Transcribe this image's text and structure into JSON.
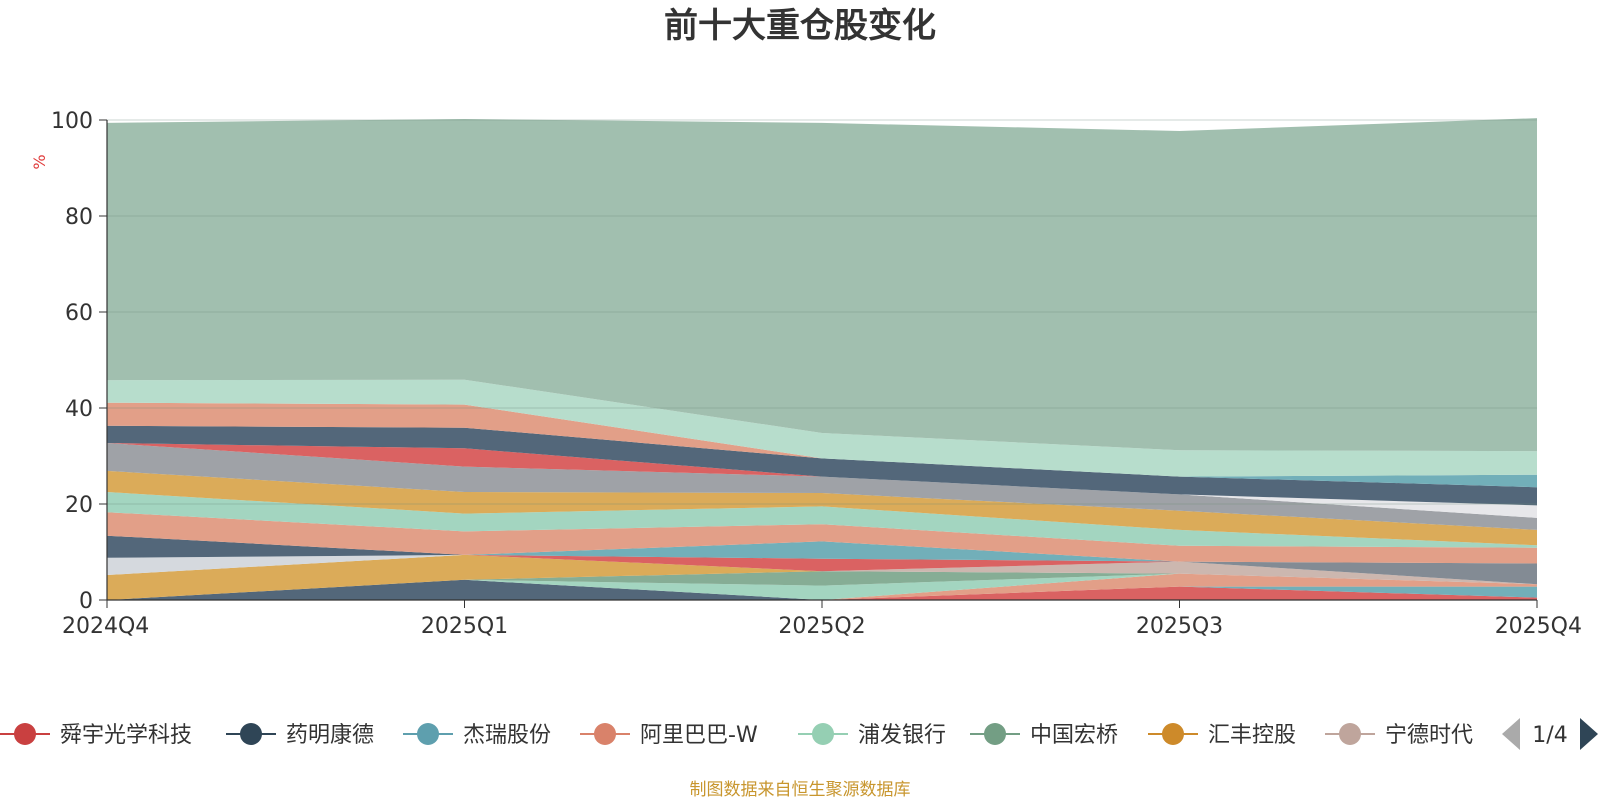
{
  "chart_data": {
    "type": "area",
    "stacked": true,
    "title": "前十大重仓股变化",
    "ylabel": "%",
    "ylim": [
      0,
      100
    ],
    "yticks": [
      "0",
      "20",
      "40",
      "60",
      "80",
      "100"
    ],
    "categories": [
      "2024Q4",
      "2025Q1",
      "2025Q2",
      "2025Q3",
      "2025Q4"
    ],
    "grid": true,
    "series": [
      {
        "name": "舜宇光学科技",
        "color": "#d85a5a",
        "values": [
          0,
          0,
          0,
          2.8,
          0.5
        ]
      },
      {
        "name": "药明康德",
        "color": "#4a5f73",
        "values": [
          0,
          4.2,
          0,
          0,
          0
        ]
      },
      {
        "name": "杰瑞股份",
        "color": "#6aabb5",
        "values": [
          0,
          0,
          0,
          0,
          2.3
        ]
      },
      {
        "name": "阿里巴巴-W",
        "color": "#e09a82",
        "values": [
          0,
          0,
          0,
          2.7,
          0.5
        ]
      },
      {
        "name": "浦发银行",
        "color": "#9ed3bd",
        "values": [
          0,
          0,
          3,
          0,
          0
        ]
      },
      {
        "name": "中国宏桥",
        "color": "#7fa98f",
        "values": [
          0,
          0,
          3,
          0,
          0
        ]
      },
      {
        "name": "汇丰控股",
        "color": "#d9a650",
        "values": [
          5.2,
          5.2,
          0,
          0,
          0
        ]
      },
      {
        "name": "宁德时代",
        "color": "#c9b3ab",
        "values": [
          0,
          0,
          0,
          2.5,
          0
        ]
      },
      {
        "name": "",
        "color": "#7c858e",
        "values": [
          0,
          0,
          0,
          0,
          4.3
        ]
      },
      {
        "name": "",
        "color": "#d3d7dc",
        "values": [
          3.6,
          0,
          0,
          0,
          0
        ]
      },
      {
        "name": "",
        "color": "#d85a5a",
        "values": [
          0,
          0,
          2.6,
          0,
          0
        ]
      },
      {
        "name": "",
        "color": "#6aabb5",
        "values": [
          0,
          0,
          3.6,
          0,
          0
        ]
      },
      {
        "name": "",
        "color": "#4a5f73",
        "values": [
          4.6,
          0,
          0,
          0,
          0
        ]
      },
      {
        "name": "",
        "color": "#e09a82",
        "values": [
          4.9,
          4.9,
          3.6,
          3.3,
          3.3
        ]
      },
      {
        "name": "",
        "color": "#9ed3bd",
        "values": [
          4.2,
          3.7,
          3.7,
          3.3,
          0.5
        ]
      },
      {
        "name": "",
        "color": "#d9a650",
        "values": [
          4.4,
          4.5,
          2.8,
          4,
          3.2
        ]
      },
      {
        "name": "",
        "color": "#9a9da2",
        "values": [
          5.8,
          5.3,
          3.4,
          3.4,
          2.5
        ]
      },
      {
        "name": "",
        "color": "#d85a5a",
        "values": [
          0,
          3.8,
          0,
          0,
          0
        ]
      },
      {
        "name": "",
        "color": "#e6e6e9",
        "values": [
          0,
          0,
          0,
          0,
          2.6
        ]
      },
      {
        "name": "",
        "color": "#4a5f73",
        "values": [
          3.6,
          4.3,
          3.8,
          3.7,
          3.8
        ]
      },
      {
        "name": "",
        "color": "#6aabb5",
        "values": [
          0,
          0,
          0,
          0,
          2.6
        ]
      },
      {
        "name": "",
        "color": "#e09a82",
        "values": [
          4.8,
          4.8,
          0,
          0,
          0
        ]
      },
      {
        "name": "",
        "color": "#b3dbc9",
        "values": [
          4.7,
          5.2,
          5.3,
          5.5,
          4.9
        ]
      },
      {
        "name": "",
        "color": "#9cbcab",
        "values": [
          53.6,
          54.3,
          64.6,
          66.5,
          69.4
        ]
      }
    ],
    "legend": {
      "position": "bottom",
      "page": "1/4",
      "items": [
        {
          "name": "舜宇光学科技",
          "color": "#c94040"
        },
        {
          "name": "药明康德",
          "color": "#2f4556"
        },
        {
          "name": "杰瑞股份",
          "color": "#5e9fae"
        },
        {
          "name": "阿里巴巴-W",
          "color": "#d9826a"
        },
        {
          "name": "浦发银行",
          "color": "#95cfb3"
        },
        {
          "name": "中国宏桥",
          "color": "#739e84"
        },
        {
          "name": "汇丰控股",
          "color": "#cd8a2a"
        },
        {
          "name": "宁德时代",
          "color": "#bfa59c"
        }
      ]
    }
  },
  "footer": {
    "source": "制图数据来自恒生聚源数据库"
  }
}
